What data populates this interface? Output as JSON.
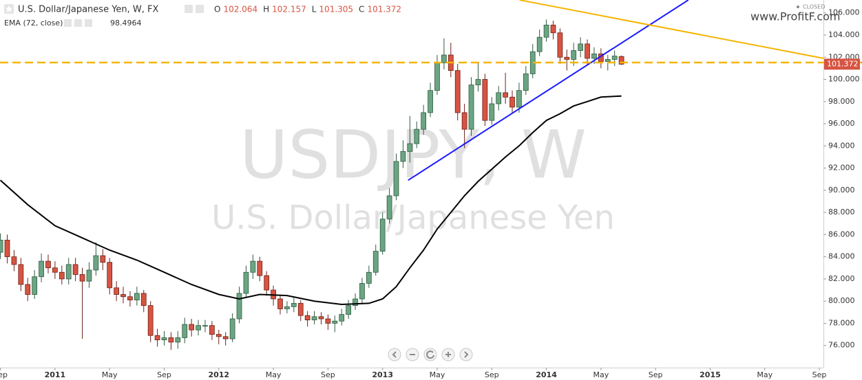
{
  "chart_data": {
    "type": "candlestick",
    "title": "U.S. Dollar/Japanese Yen, W, FX",
    "watermark": "USDJPY, W",
    "watermark_subtitle": "U.S. Dollar/Japanese Yen",
    "status": "CLOSED",
    "logo": "www.ProfitF.com",
    "ohlc_labels": [
      "O",
      "H",
      "L",
      "C"
    ],
    "up_color": "#6ba583",
    "down_color": "#d75442",
    "xlim": [
      -4.03,
      56.3
    ],
    "xticks": [
      {
        "value": -4,
        "label": "Sep"
      },
      {
        "value": 0,
        "label": "2011"
      },
      {
        "value": 4,
        "label": "May"
      },
      {
        "value": 8,
        "label": "Sep"
      },
      {
        "value": 12,
        "label": "2012"
      },
      {
        "value": 16,
        "label": "May"
      },
      {
        "value": 20,
        "label": "Sep"
      },
      {
        "value": 24,
        "label": "2013"
      },
      {
        "value": 28,
        "label": "May"
      },
      {
        "value": 32,
        "label": "Sep"
      },
      {
        "value": 36,
        "label": "2014"
      },
      {
        "value": 40,
        "label": "May"
      },
      {
        "value": 44,
        "label": "Sep"
      },
      {
        "value": 48,
        "label": "2015"
      },
      {
        "value": 52,
        "label": "May"
      },
      {
        "value": 56,
        "label": "Sep"
      }
    ],
    "ylim": [
      74.0,
      107.16
    ],
    "yticks": [
      {
        "value": 76,
        "label": "76.000"
      },
      {
        "value": 78,
        "label": "78.000"
      },
      {
        "value": 80,
        "label": "80.000"
      },
      {
        "value": 82,
        "label": "82.000"
      },
      {
        "value": 84,
        "label": "84.000"
      },
      {
        "value": 86,
        "label": "86.000"
      },
      {
        "value": 88,
        "label": "88.000"
      },
      {
        "value": 90,
        "label": "90.000"
      },
      {
        "value": 92,
        "label": "92.000"
      },
      {
        "value": 94,
        "label": "94.000"
      },
      {
        "value": 96,
        "label": "96.000"
      },
      {
        "value": 98,
        "label": "98.000"
      },
      {
        "value": 100,
        "label": "100.000"
      },
      {
        "value": 102,
        "label": "102.000"
      },
      {
        "value": 104,
        "label": "104.000"
      },
      {
        "value": 106,
        "label": "106.000"
      }
    ],
    "x": [
      -4,
      -3.5,
      -3,
      -2.5,
      -2,
      -1.5,
      -1,
      -0.5,
      0,
      0.5,
      1,
      1.5,
      2,
      2.5,
      3,
      3.5,
      4,
      4.5,
      5,
      5.5,
      6,
      6.5,
      7,
      7.5,
      8,
      8.5,
      9,
      9.5,
      10,
      10.5,
      11,
      11.5,
      12,
      12.5,
      13,
      13.5,
      14,
      14.5,
      15,
      15.5,
      16,
      16.5,
      17,
      17.5,
      18,
      18.5,
      19,
      19.5,
      20,
      20.5,
      21,
      21.5,
      22,
      22.5,
      23,
      23.5,
      24,
      24.5,
      25,
      25.5,
      26,
      26.5,
      27,
      27.5,
      28,
      28.5,
      29,
      29.5,
      30,
      30.5,
      31,
      31.5,
      32,
      32.5,
      33,
      33.5,
      34,
      34.5,
      35,
      35.5,
      36,
      36.5,
      37,
      37.5,
      38,
      38.5,
      39,
      39.5,
      40,
      40.5,
      41,
      41.5
    ],
    "open": [
      84.4,
      85.5,
      84.0,
      83.3,
      81.5,
      80.6,
      82.2,
      83.6,
      83.0,
      82.6,
      82.0,
      83.3,
      82.4,
      81.8,
      82.8,
      84.1,
      83.5,
      81.2,
      80.6,
      80.4,
      80.1,
      80.7,
      79.6,
      76.9,
      76.5,
      76.7,
      76.3,
      76.7,
      77.9,
      77.4,
      77.8,
      77.8,
      77.0,
      76.8,
      76.6,
      78.4,
      80.7,
      82.6,
      83.6,
      82.3,
      81.0,
      80.2,
      79.3,
      79.5,
      79.8,
      78.7,
      78.3,
      78.6,
      78.4,
      78.0,
      78.2,
      78.8,
      79.6,
      80.2,
      81.6,
      82.6,
      84.5,
      87.4,
      89.5,
      92.6,
      93.5,
      94.2,
      95.5,
      97.0,
      99.0,
      101.5,
      102.2,
      100.8,
      97.0,
      95.5,
      99.5,
      100.0,
      96.3,
      97.8,
      98.8,
      98.4,
      97.5,
      99.0,
      100.5,
      102.5,
      103.8,
      104.9,
      104.2,
      102.0,
      101.8,
      102.6,
      103.2,
      101.9,
      102.3,
      101.6,
      101.8,
      102.064
    ],
    "high": [
      86.1,
      86.0,
      84.6,
      83.9,
      82.1,
      82.8,
      84.3,
      84.2,
      83.6,
      83.2,
      83.9,
      83.9,
      83.0,
      83.5,
      85.3,
      84.7,
      83.9,
      81.8,
      81.3,
      80.9,
      81.3,
      81.0,
      80.0,
      77.5,
      77.3,
      77.2,
      77.3,
      78.5,
      78.4,
      78.3,
      78.3,
      78.2,
      77.4,
      77.2,
      78.9,
      81.3,
      83.2,
      84.2,
      84.0,
      82.7,
      81.4,
      80.6,
      80.0,
      80.3,
      80.1,
      79.1,
      79.1,
      79.0,
      78.8,
      78.7,
      79.3,
      80.1,
      80.7,
      82.1,
      83.2,
      85.1,
      88.0,
      90.2,
      93.3,
      94.5,
      96.7,
      96.2,
      97.7,
      99.7,
      102.2,
      103.7,
      103.3,
      101.4,
      97.8,
      100.2,
      101.5,
      100.5,
      98.4,
      99.4,
      100.6,
      99.0,
      99.7,
      101.2,
      103.2,
      104.5,
      105.4,
      105.3,
      104.6,
      102.7,
      103.3,
      103.8,
      103.6,
      102.9,
      102.8,
      102.2,
      102.6,
      102.157
    ],
    "low": [
      83.8,
      83.4,
      82.7,
      80.9,
      80.0,
      80.2,
      81.7,
      82.5,
      82.0,
      81.5,
      81.5,
      81.8,
      76.6,
      81.2,
      82.3,
      82.8,
      80.6,
      80.0,
      79.8,
      79.5,
      79.6,
      79.0,
      76.3,
      75.9,
      76.0,
      75.6,
      75.7,
      76.2,
      76.8,
      76.9,
      77.2,
      76.5,
      76.1,
      76.0,
      76.3,
      78.0,
      80.3,
      82.0,
      81.8,
      80.5,
      79.6,
      78.8,
      78.9,
      79.0,
      78.2,
      77.7,
      77.9,
      77.9,
      77.4,
      77.2,
      77.8,
      78.4,
      79.2,
      79.8,
      81.2,
      82.3,
      84.2,
      87.0,
      89.1,
      92.0,
      92.5,
      93.8,
      95.0,
      96.6,
      98.6,
      100.9,
      100.2,
      96.3,
      93.8,
      94.9,
      98.9,
      95.8,
      95.9,
      97.2,
      97.8,
      96.9,
      97.0,
      98.6,
      100.1,
      102.1,
      103.4,
      103.6,
      101.4,
      100.8,
      101.2,
      102.0,
      101.3,
      101.4,
      101.0,
      100.8,
      101.2,
      101.305
    ],
    "close": [
      85.5,
      84.0,
      83.3,
      81.5,
      80.6,
      82.2,
      83.6,
      83.0,
      82.6,
      82.0,
      83.3,
      82.4,
      81.8,
      82.8,
      84.1,
      83.5,
      81.2,
      80.6,
      80.4,
      80.1,
      80.7,
      79.6,
      76.9,
      76.5,
      76.7,
      76.3,
      76.7,
      77.9,
      77.4,
      77.8,
      77.8,
      77.0,
      76.8,
      76.6,
      78.4,
      80.7,
      82.6,
      83.6,
      82.3,
      81.0,
      80.2,
      79.3,
      79.5,
      79.8,
      78.7,
      78.3,
      78.6,
      78.4,
      78.0,
      78.2,
      78.8,
      79.6,
      80.2,
      81.6,
      82.6,
      84.5,
      87.4,
      89.5,
      92.6,
      93.5,
      94.2,
      95.5,
      97.0,
      99.0,
      101.5,
      102.2,
      100.8,
      97.0,
      95.5,
      99.5,
      100.0,
      96.3,
      97.8,
      98.8,
      98.4,
      97.5,
      99.0,
      100.5,
      102.5,
      103.8,
      104.9,
      104.2,
      102.0,
      101.8,
      102.6,
      103.2,
      101.9,
      102.3,
      101.6,
      101.8,
      102.1,
      101.372
    ],
    "ema": {
      "label": "EMA (72, close)",
      "value": 98.4964,
      "color": "#000000",
      "x": [
        -4,
        -2,
        0,
        2,
        4,
        6,
        8,
        10,
        12,
        13.5,
        15,
        17,
        19,
        21,
        23,
        24,
        25,
        26,
        27,
        28,
        29,
        30,
        31,
        32,
        33,
        34,
        35,
        36,
        37,
        38,
        39,
        40,
        41.5
      ],
      "values": [
        90.9,
        88.7,
        86.8,
        85.7,
        84.6,
        83.7,
        82.6,
        81.5,
        80.6,
        80.2,
        80.6,
        80.5,
        80.0,
        79.7,
        79.8,
        80.2,
        81.3,
        83.0,
        84.6,
        86.5,
        88.0,
        89.5,
        90.8,
        91.9,
        93.0,
        94.0,
        95.2,
        96.3,
        96.9,
        97.6,
        98.0,
        98.4,
        98.5
      ]
    },
    "trendlines": [
      {
        "color": "#1a1aff",
        "x": [
          25.87,
          46.4
        ],
        "y": [
          90.9,
          107.16
        ]
      },
      {
        "color": "#f5b400",
        "x": [
          34.04,
          56.3
        ],
        "y": [
          107.16,
          101.9
        ]
      }
    ],
    "hline": {
      "color": "#f5b400",
      "value": 101.52
    }
  }
}
